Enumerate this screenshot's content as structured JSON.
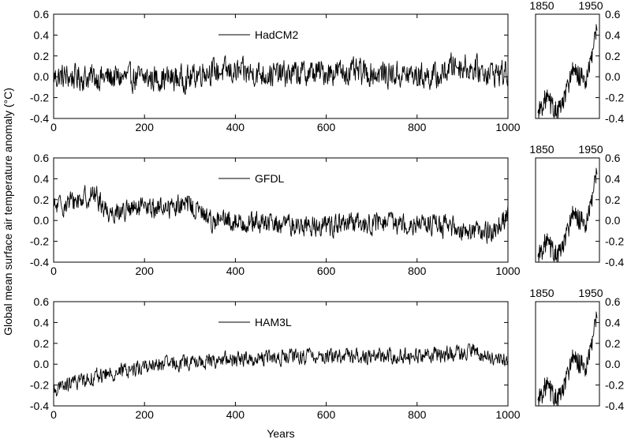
{
  "chart_data": {
    "type": "line",
    "ylabel": "Global mean surface air temperature anomaly (°C)",
    "xlabel": "Years",
    "ylim": [
      -0.4,
      0.6
    ],
    "yticks": [
      "0.6",
      "0.4",
      "0.2",
      "0.0",
      "-0.2",
      "-0.4"
    ],
    "xlim": [
      0,
      1000
    ],
    "xticks": [
      "0",
      "200",
      "400",
      "600",
      "800",
      "1000"
    ],
    "grid": false,
    "models": [
      {
        "name": "HadCM2",
        "mean": 0.02,
        "amplitude": 0.17,
        "drift": [
          [
            0,
            0.0
          ],
          [
            300,
            -0.02
          ],
          [
            330,
            0.06
          ],
          [
            500,
            0.02
          ],
          [
            620,
            0.05
          ],
          [
            850,
            0.0
          ],
          [
            880,
            0.12
          ],
          [
            950,
            0.05
          ],
          [
            1000,
            0.03
          ]
        ]
      },
      {
        "name": "GFDL",
        "mean": 0.0,
        "amplitude": 0.14,
        "drift": [
          [
            0,
            0.12
          ],
          [
            90,
            0.25
          ],
          [
            120,
            0.08
          ],
          [
            300,
            0.15
          ],
          [
            350,
            0.0
          ],
          [
            550,
            -0.05
          ],
          [
            800,
            -0.02
          ],
          [
            960,
            -0.12
          ],
          [
            1000,
            0.05
          ]
        ]
      },
      {
        "name": "HAM3L",
        "mean": 0.0,
        "amplitude": 0.1,
        "drift": [
          [
            0,
            -0.25
          ],
          [
            60,
            -0.15
          ],
          [
            200,
            -0.02
          ],
          [
            400,
            0.05
          ],
          [
            600,
            0.08
          ],
          [
            800,
            0.08
          ],
          [
            920,
            0.12
          ],
          [
            1000,
            0.02
          ]
        ]
      }
    ],
    "observed": {
      "xticks": [
        "1850",
        "1950"
      ],
      "yticks": [
        "0.6",
        "0.4",
        "0.2",
        "0.0",
        "-0.2",
        "-0.4"
      ],
      "trend": [
        [
          1860,
          -0.35
        ],
        [
          1880,
          -0.2
        ],
        [
          1905,
          -0.35
        ],
        [
          1920,
          -0.25
        ],
        [
          1940,
          0.05
        ],
        [
          1960,
          0.0
        ],
        [
          1975,
          -0.05
        ],
        [
          1990,
          0.25
        ],
        [
          2000,
          0.45
        ]
      ],
      "x_range": [
        1860,
        2000
      ]
    }
  }
}
